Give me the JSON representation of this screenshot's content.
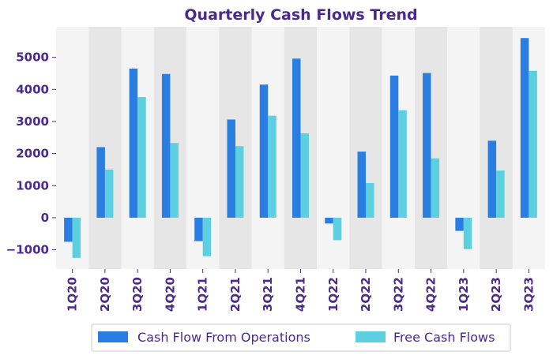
{
  "chart_data": {
    "type": "bar",
    "title": "Quarterly Cash Flows Trend",
    "xlabel": "",
    "ylabel": "",
    "categories": [
      "1Q20",
      "2Q20",
      "3Q20",
      "4Q20",
      "1Q21",
      "2Q21",
      "3Q21",
      "4Q21",
      "1Q22",
      "2Q22",
      "3Q22",
      "4Q22",
      "1Q23",
      "2Q23",
      "3Q23"
    ],
    "series": [
      {
        "name": "Cash Flow From Operations",
        "color": "#2a7de1",
        "values": [
          -750,
          2200,
          4650,
          4480,
          -730,
          3060,
          4150,
          4960,
          -180,
          2060,
          4430,
          4510,
          -410,
          2400,
          5600
        ]
      },
      {
        "name": "Free Cash Flows",
        "color": "#5ccfe0",
        "values": [
          -1250,
          1500,
          3760,
          2330,
          -1200,
          2230,
          3180,
          2630,
          -700,
          1080,
          3350,
          1850,
          -980,
          1470,
          4580
        ]
      }
    ],
    "yticks": [
      -1000,
      0,
      1000,
      2000,
      3000,
      4000,
      5000
    ],
    "ytick_labels": [
      "−1000",
      "0",
      "1000",
      "2000",
      "3000",
      "4000",
      "5000"
    ],
    "ylim": [
      -1600,
      5950
    ],
    "grid": false,
    "band_colors": [
      "#f4f4f4",
      "#e6e6e6"
    ],
    "text_color": "#4b2a8c",
    "legend_position": "bottom-center"
  }
}
